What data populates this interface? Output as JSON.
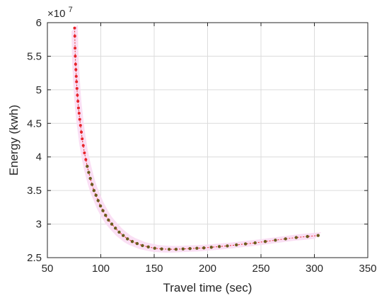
{
  "chart_data": {
    "type": "scatter",
    "xlabel": "Travel time (sec)",
    "ylabel": "Energy (kwh)",
    "y_exponent_base": "×10",
    "y_exponent_power": "7",
    "xlim": [
      50,
      350
    ],
    "ylim": [
      2.5,
      6
    ],
    "xticks": [
      50,
      100,
      150,
      200,
      250,
      300,
      350
    ],
    "yticks": [
      2.5,
      3,
      3.5,
      4,
      4.5,
      5,
      5.5,
      6
    ],
    "xtick_labels": [
      "50",
      "100",
      "150",
      "200",
      "250",
      "300",
      "350"
    ],
    "ytick_labels": [
      "2.5",
      "3",
      "3.5",
      "4",
      "4.5",
      "5",
      "5.5",
      "6"
    ],
    "grid": true,
    "colors": {
      "red_points": "#e8242b",
      "olive_points": "#6b5b1c",
      "line": "#e8242b",
      "band": "#fadcf3",
      "grid": "#dcdcdc",
      "axis": "#262626"
    },
    "series": [
      {
        "points": [
          [
            75.5,
            5.92
          ],
          [
            75.7,
            5.8
          ],
          [
            75.9,
            5.62
          ],
          [
            76.1,
            5.5
          ],
          [
            76.4,
            5.38
          ],
          [
            76.7,
            5.3
          ],
          [
            77.0,
            5.2
          ],
          [
            77.3,
            5.12
          ],
          [
            77.7,
            5.02
          ],
          [
            78.1,
            4.92
          ],
          [
            78.6,
            4.83
          ],
          [
            79.1,
            4.73
          ],
          [
            79.7,
            4.65
          ],
          [
            80.3,
            4.56
          ],
          [
            81.0,
            4.47
          ],
          [
            81.8,
            4.37
          ],
          [
            82.6,
            4.27
          ],
          [
            83.6,
            4.17
          ],
          [
            84.7,
            4.06
          ],
          [
            86.0,
            3.96
          ]
        ]
      },
      {
        "points": [
          [
            87.3,
            3.86
          ],
          [
            88.7,
            3.77
          ],
          [
            90.2,
            3.68
          ],
          [
            91.8,
            3.59
          ],
          [
            93.6,
            3.5
          ],
          [
            95.5,
            3.43
          ],
          [
            97.5,
            3.35
          ],
          [
            99.7,
            3.27
          ],
          [
            102.0,
            3.2
          ],
          [
            104.5,
            3.13
          ],
          [
            107.2,
            3.06
          ],
          [
            110.3,
            3.0
          ],
          [
            113.7,
            2.94
          ],
          [
            117.2,
            2.88
          ],
          [
            121.0,
            2.83
          ],
          [
            125.0,
            2.78
          ],
          [
            129.5,
            2.74
          ],
          [
            134.0,
            2.71
          ],
          [
            139.0,
            2.68
          ],
          [
            144.5,
            2.66
          ],
          [
            150.5,
            2.64
          ],
          [
            157.0,
            2.63
          ],
          [
            164.0,
            2.625
          ],
          [
            170.5,
            2.625
          ],
          [
            177.0,
            2.63
          ],
          [
            183.5,
            2.635
          ],
          [
            190.0,
            2.64
          ],
          [
            196.5,
            2.645
          ],
          [
            203.5,
            2.655
          ],
          [
            211.0,
            2.665
          ],
          [
            218.5,
            2.675
          ],
          [
            227.0,
            2.69
          ],
          [
            235.5,
            2.705
          ],
          [
            244.5,
            2.72
          ],
          [
            254.0,
            2.74
          ],
          [
            263.5,
            2.76
          ],
          [
            273.0,
            2.78
          ],
          [
            283.0,
            2.8
          ],
          [
            293.5,
            2.815
          ],
          [
            303.5,
            2.83
          ]
        ]
      }
    ]
  }
}
